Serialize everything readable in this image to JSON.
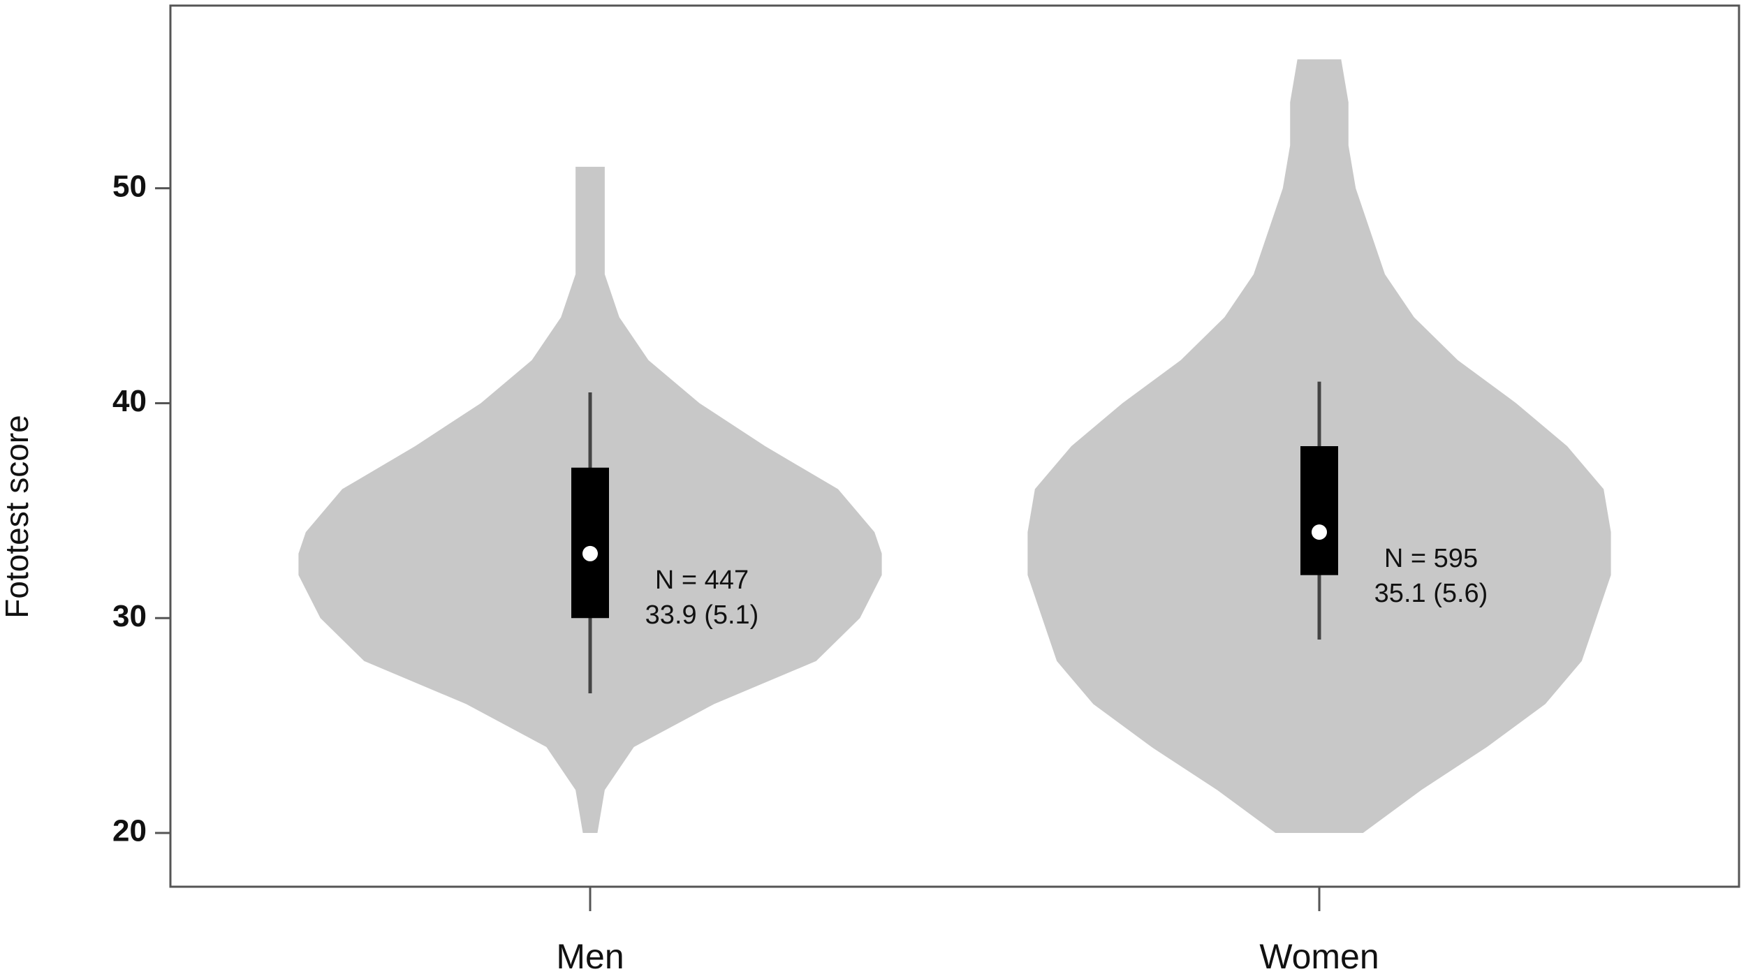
{
  "chart_data": {
    "type": "violin",
    "y_label": "Fototest score",
    "categories": [
      "Men",
      "Women"
    ],
    "ylim": [
      17.5,
      58.5
    ],
    "yticks": [
      20,
      30,
      40,
      50
    ],
    "violin_color": "#c8c8c8",
    "box_color": "#000000",
    "series": [
      {
        "name": "Men",
        "whisker_low": 26.5,
        "q1": 30,
        "median": 33,
        "q3": 37,
        "whisker_high": 40.5,
        "density_y": [
          20,
          22,
          24,
          26,
          28,
          30,
          32,
          33,
          34,
          36,
          38,
          40,
          42,
          44,
          46,
          48,
          50,
          51
        ],
        "density": [
          0.01,
          0.02,
          0.06,
          0.17,
          0.31,
          0.37,
          0.4,
          0.4,
          0.39,
          0.34,
          0.24,
          0.15,
          0.08,
          0.04,
          0.02,
          0.02,
          0.02,
          0.02
        ],
        "annotation": [
          "N = 447",
          "33.9 (5.1)"
        ]
      },
      {
        "name": "Women",
        "whisker_low": 29,
        "q1": 32,
        "median": 34,
        "q3": 38,
        "whisker_high": 41,
        "density_y": [
          20,
          22,
          24,
          26,
          28,
          30,
          32,
          34,
          36,
          38,
          40,
          42,
          44,
          46,
          48,
          50,
          52,
          54,
          56
        ],
        "density": [
          0.06,
          0.14,
          0.23,
          0.31,
          0.36,
          0.38,
          0.4,
          0.4,
          0.39,
          0.34,
          0.27,
          0.19,
          0.13,
          0.09,
          0.07,
          0.05,
          0.04,
          0.04,
          0.03
        ],
        "annotation": [
          "N = 595",
          "35.1 (5.6)"
        ]
      }
    ]
  }
}
